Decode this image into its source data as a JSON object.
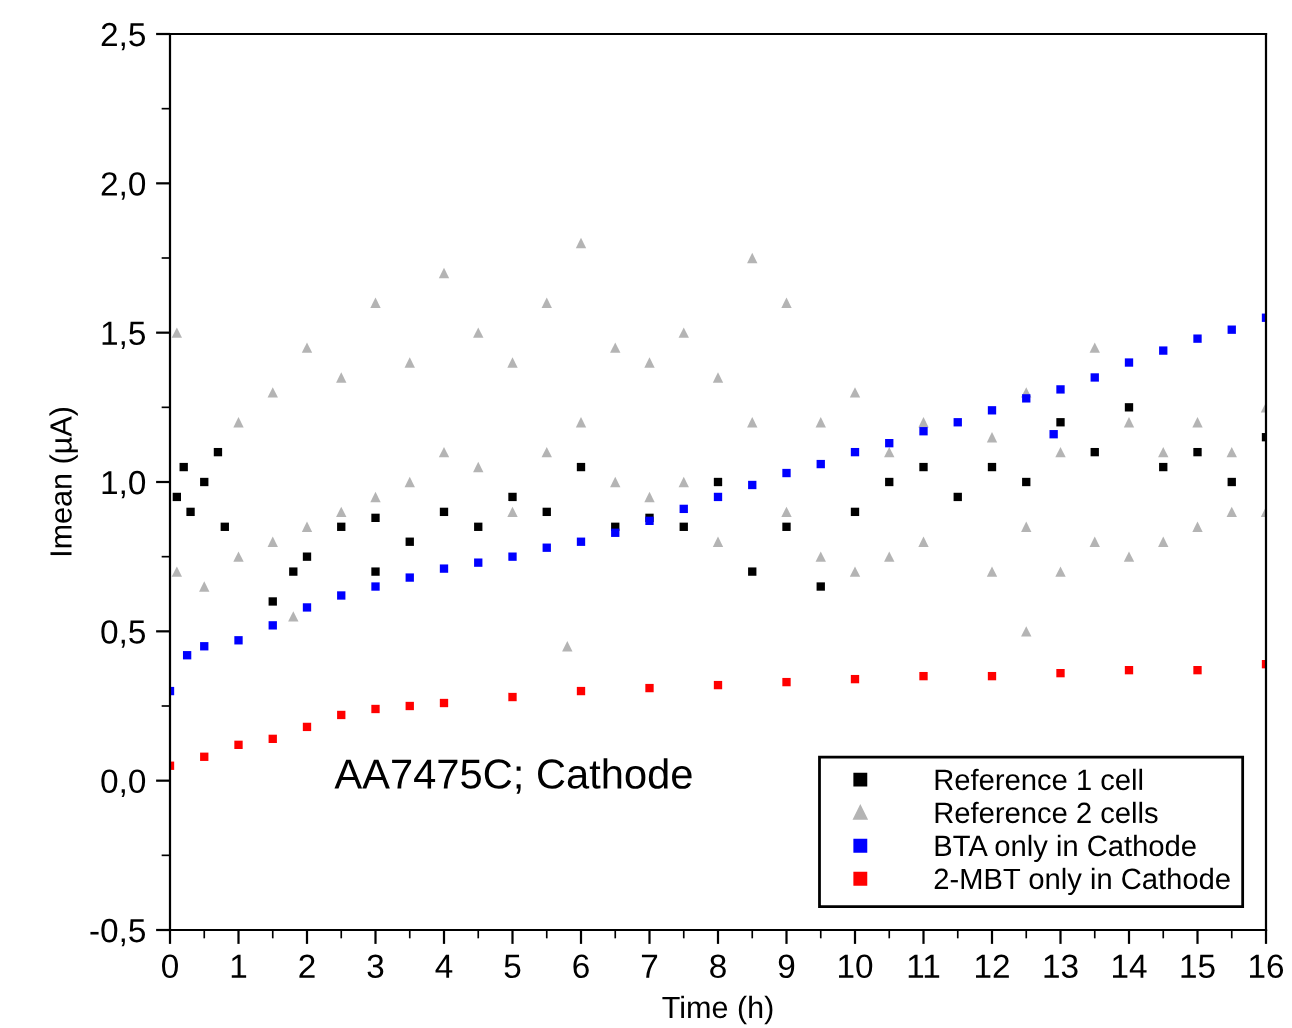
{
  "chart_data": {
    "type": "scatter",
    "xlabel": "Time (h)",
    "ylabel": "Imean (µA)",
    "xlim": [
      0,
      16
    ],
    "ylim": [
      -0.5,
      2.5
    ],
    "xticks": [
      0,
      {
        "value": 0.5,
        "label": null
      },
      1,
      {
        "value": 1.5,
        "label": null
      },
      2,
      {
        "value": 2.5,
        "label": null
      },
      3,
      {
        "value": 3.5,
        "label": null
      },
      4,
      {
        "value": 4.5,
        "label": null
      },
      5,
      {
        "value": 5.5,
        "label": null
      },
      6,
      {
        "value": 6.5,
        "label": null
      },
      7,
      {
        "value": 7.5,
        "label": null
      },
      8,
      {
        "value": 8.5,
        "label": null
      },
      9,
      {
        "value": 9.5,
        "label": null
      },
      10,
      {
        "value": 10.5,
        "label": null
      },
      11,
      {
        "value": 11.5,
        "label": null
      },
      12,
      {
        "value": 12.5,
        "label": null
      },
      13,
      {
        "value": 13.5,
        "label": null
      },
      14,
      {
        "value": 14.5,
        "label": null
      },
      15,
      {
        "value": 15.5,
        "label": null
      },
      16
    ],
    "yticks": [
      {
        "value": -0.5,
        "label": "-0,5"
      },
      {
        "value": -0.25,
        "label": null
      },
      {
        "value": 0,
        "label": "0,0"
      },
      {
        "value": 0.25,
        "label": null
      },
      {
        "value": 0.5,
        "label": "0,5"
      },
      {
        "value": 0.75,
        "label": null
      },
      {
        "value": 1.0,
        "label": "1,0"
      },
      {
        "value": 1.25,
        "label": null
      },
      {
        "value": 1.5,
        "label": "1,5"
      },
      {
        "value": 1.75,
        "label": null
      },
      {
        "value": 2.0,
        "label": "2,0"
      },
      {
        "value": 2.25,
        "label": null
      },
      {
        "value": 2.5,
        "label": "2,5"
      }
    ],
    "grid": false,
    "legend": "bottom right",
    "annotations": [
      "AA7475C; Cathode"
    ],
    "series": [
      {
        "name": "Reference 1 cell",
        "color": "#000000",
        "marker": "square",
        "x": [
          0.1,
          0.2,
          0.3,
          0.5,
          0.7,
          0.8,
          1.5,
          1.8,
          2,
          2.5,
          3,
          3,
          3.5,
          4,
          4.5,
          5,
          5.5,
          6,
          6.5,
          7,
          7.5,
          8,
          8.5,
          9,
          9.5,
          10,
          10.5,
          11,
          11.5,
          12,
          12.5,
          13,
          13.5,
          14,
          14.5,
          15,
          15.5,
          16
        ],
        "values": [
          0.95,
          1.05,
          0.9,
          1.0,
          1.1,
          0.85,
          0.6,
          0.7,
          0.75,
          0.85,
          0.7,
          0.88,
          0.8,
          0.9,
          0.85,
          0.95,
          0.9,
          1.05,
          0.85,
          0.88,
          0.85,
          1.0,
          0.7,
          0.85,
          0.65,
          0.9,
          1.0,
          1.05,
          0.95,
          1.05,
          1.0,
          1.2,
          1.1,
          1.25,
          1.05,
          1.1,
          1.0,
          1.15
        ]
      },
      {
        "name": "Reference 2 cells",
        "color": "#b4b4b4",
        "marker": "triangle",
        "x": [
          0.1,
          0.1,
          0.5,
          1,
          1,
          1.5,
          1.5,
          1.8,
          2,
          2,
          2.5,
          2.5,
          3,
          3,
          3.5,
          3.5,
          4,
          4,
          4.5,
          4.5,
          5,
          5,
          5.5,
          5.5,
          5.8,
          6,
          6,
          6.5,
          6.5,
          7,
          7,
          7.5,
          7.5,
          8,
          8,
          8.5,
          8.5,
          9,
          9,
          9.5,
          9.5,
          10,
          10,
          10.5,
          10.5,
          11,
          11,
          12,
          12,
          12.5,
          12.5,
          12.5,
          13,
          13,
          13.5,
          13.5,
          14,
          14,
          14.5,
          14.5,
          15,
          15,
          15.5,
          15.5,
          16,
          16
        ],
        "values": [
          0.7,
          1.5,
          0.65,
          0.75,
          1.2,
          0.8,
          1.3,
          0.55,
          0.85,
          1.45,
          0.9,
          1.35,
          0.95,
          1.6,
          1.0,
          1.4,
          1.1,
          1.7,
          1.05,
          1.5,
          0.9,
          1.4,
          1.1,
          1.6,
          0.45,
          1.2,
          1.8,
          1.0,
          1.45,
          0.95,
          1.4,
          1.0,
          1.5,
          0.8,
          1.35,
          1.2,
          1.75,
          0.9,
          1.6,
          0.75,
          1.2,
          0.7,
          1.3,
          0.75,
          1.1,
          0.8,
          1.2,
          0.7,
          1.15,
          0.85,
          1.3,
          0.5,
          0.7,
          1.1,
          0.8,
          1.45,
          0.75,
          1.2,
          0.8,
          1.1,
          0.85,
          1.2,
          0.9,
          1.1,
          0.9,
          1.25
        ]
      },
      {
        "name": "BTA only in Cathode",
        "color": "#0000ff",
        "marker": "square",
        "x": [
          0,
          0.25,
          0.5,
          1,
          1.5,
          2,
          2.5,
          3,
          3.5,
          4,
          4.5,
          5,
          5.5,
          6,
          6.5,
          7,
          7.5,
          8,
          8.5,
          9,
          9.5,
          10,
          10.5,
          11,
          11.5,
          12,
          12.5,
          12.9,
          13,
          13.5,
          14,
          14.5,
          15,
          15.5,
          16
        ],
        "values": [
          0.3,
          0.42,
          0.45,
          0.47,
          0.52,
          0.58,
          0.62,
          0.65,
          0.68,
          0.71,
          0.73,
          0.75,
          0.78,
          0.8,
          0.83,
          0.87,
          0.91,
          0.95,
          0.99,
          1.03,
          1.06,
          1.1,
          1.13,
          1.17,
          1.2,
          1.24,
          1.28,
          1.16,
          1.31,
          1.35,
          1.4,
          1.44,
          1.48,
          1.51,
          1.55
        ]
      },
      {
        "name": "2-MBT only in Cathode",
        "color": "#ff0000",
        "marker": "square",
        "x": [
          0,
          0.5,
          1,
          1.5,
          2,
          2.5,
          3,
          3.5,
          4,
          5,
          6,
          7,
          8,
          9,
          10,
          11,
          12,
          13,
          14,
          15,
          16
        ],
        "values": [
          0.05,
          0.08,
          0.12,
          0.14,
          0.18,
          0.22,
          0.24,
          0.25,
          0.26,
          0.28,
          0.3,
          0.31,
          0.32,
          0.33,
          0.34,
          0.35,
          0.35,
          0.36,
          0.37,
          0.37,
          0.39
        ]
      }
    ]
  }
}
